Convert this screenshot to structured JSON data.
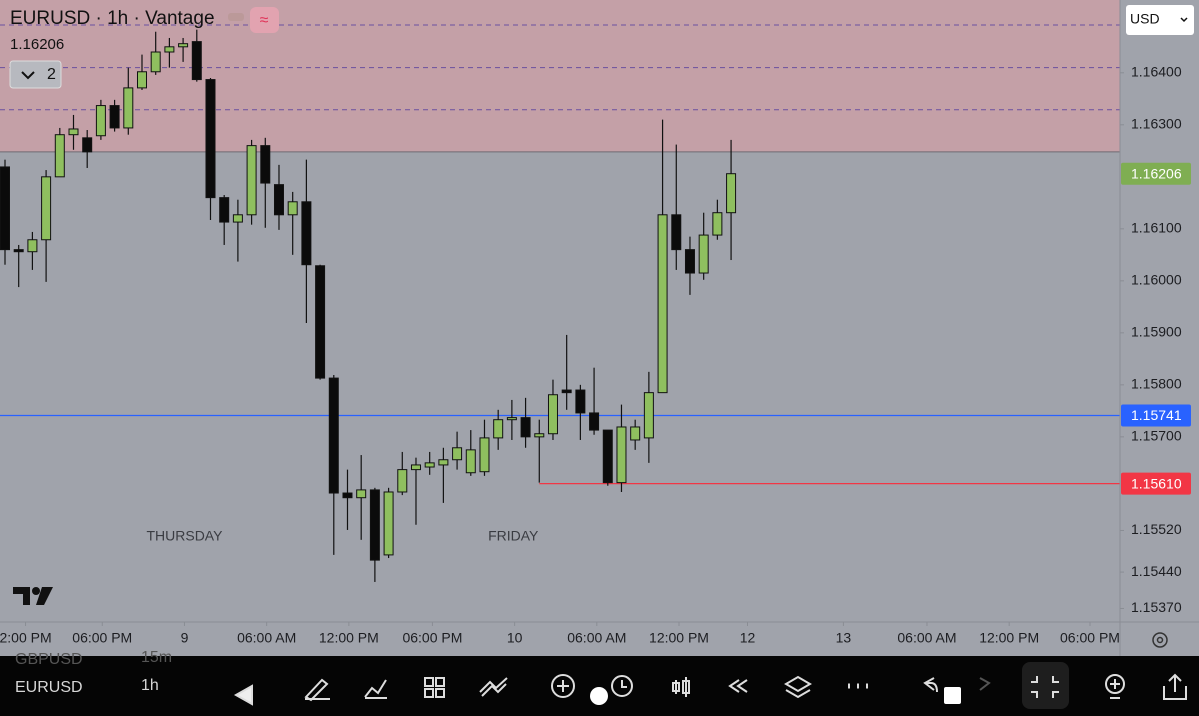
{
  "header": {
    "title": "EURUSD · 1h · Vantage",
    "price": "1.16206",
    "indicators_count": "2",
    "currency": "USD"
  },
  "chart_data": {
    "type": "candlestick",
    "up_color": "#8fbf5f",
    "down_color": "#0b0b0b",
    "open": [
      1.16219,
      1.1606,
      1.16056,
      1.16079,
      1.162,
      1.16281,
      1.16275,
      1.16279,
      1.16337,
      1.16294,
      1.16371,
      1.16402,
      1.1644,
      1.1645,
      1.1646,
      1.16387,
      1.1616,
      1.16113,
      1.16127,
      1.1626,
      1.16185,
      1.16127,
      1.16152,
      1.16029,
      1.15813,
      1.15592,
      1.15583,
      1.15598,
      1.15473,
      1.15594,
      1.15637,
      1.15642,
      1.15646,
      1.15656,
      1.15631,
      1.15633,
      1.15698,
      1.15733,
      1.15737,
      1.157,
      1.15706,
      1.1579,
      1.1579,
      1.15746,
      1.15713,
      1.15612,
      1.15694,
      1.15698,
      1.15785,
      1.16127,
      1.1606,
      1.16015,
      1.16088,
      1.16131
    ],
    "high": [
      1.16233,
      1.16069,
      1.16094,
      1.16213,
      1.16294,
      1.16319,
      1.1629,
      1.16348,
      1.16348,
      1.1641,
      1.16435,
      1.16479,
      1.16467,
      1.16467,
      1.16483,
      1.1639,
      1.16165,
      1.16156,
      1.16271,
      1.16275,
      1.16223,
      1.16171,
      1.16233,
      1.16031,
      1.15819,
      1.15637,
      1.15665,
      1.15602,
      1.15602,
      1.15671,
      1.1566,
      1.15671,
      1.15679,
      1.1571,
      1.15713,
      1.15733,
      1.15752,
      1.15771,
      1.15775,
      1.15733,
      1.1581,
      1.15896,
      1.158,
      1.15833,
      1.15713,
      1.15762,
      1.15733,
      1.15825,
      1.1631,
      1.16262,
      1.16085,
      1.16131,
      1.16156,
      1.16271
    ],
    "low": [
      1.16031,
      1.15988,
      1.16021,
      1.15998,
      1.162,
      1.16252,
      1.16217,
      1.16271,
      1.16287,
      1.16281,
      1.16367,
      1.16396,
      1.1641,
      1.16421,
      1.16383,
      1.16117,
      1.16069,
      1.16037,
      1.16108,
      1.16102,
      1.16098,
      1.1605,
      1.15919,
      1.1581,
      1.15473,
      1.15521,
      1.15502,
      1.15421,
      1.15467,
      1.15588,
      1.15531,
      1.15627,
      1.15573,
      1.15637,
      1.15625,
      1.15625,
      1.15675,
      1.15694,
      1.15679,
      1.15612,
      1.15694,
      1.15752,
      1.15694,
      1.15704,
      1.15606,
      1.15594,
      1.15675,
      1.1565,
      1.15785,
      1.16021,
      1.15973,
      1.16002,
      1.16079,
      1.1604
    ],
    "close": [
      1.1606,
      1.16056,
      1.16079,
      1.162,
      1.16281,
      1.16292,
      1.16248,
      1.16337,
      1.16294,
      1.16371,
      1.16402,
      1.1644,
      1.1645,
      1.16456,
      1.16387,
      1.1616,
      1.16113,
      1.16127,
      1.1626,
      1.16188,
      1.16127,
      1.16152,
      1.16031,
      1.15813,
      1.15592,
      1.15583,
      1.15598,
      1.15463,
      1.15594,
      1.15637,
      1.15646,
      1.1565,
      1.15656,
      1.15679,
      1.15675,
      1.15698,
      1.15733,
      1.15737,
      1.157,
      1.15706,
      1.15781,
      1.15785,
      1.15746,
      1.15713,
      1.15612,
      1.15719,
      1.15719,
      1.15785,
      1.16127,
      1.1606,
      1.16015,
      1.16088,
      1.16131,
      1.16206
    ],
    "xlim": [
      -0.365,
      81.39
    ],
    "ylim": [
      1.15344,
      1.1654
    ],
    "yticks": [
      {
        "value": 1.164,
        "label": "1.16400"
      },
      {
        "value": 1.163,
        "label": "1.16300"
      },
      {
        "value": 1.161,
        "label": "1.16100"
      },
      {
        "value": 1.16,
        "label": "1.16000"
      },
      {
        "value": 1.159,
        "label": "1.15900"
      },
      {
        "value": 1.158,
        "label": "1.15800"
      },
      {
        "value": 1.157,
        "label": "1.15700"
      },
      {
        "value": 1.1552,
        "label": "1.15520"
      },
      {
        "value": 1.1544,
        "label": "1.15440"
      },
      {
        "value": 1.1537,
        "label": "1.15370"
      }
    ],
    "xticks": [
      {
        "value": 1.5,
        "label": "2:00 PM"
      },
      {
        "value": 7.1,
        "label": "06:00 PM"
      },
      {
        "value": 13.1,
        "label": "9"
      },
      {
        "value": 19.1,
        "label": "06:00 AM"
      },
      {
        "value": 25.1,
        "label": "12:00 PM"
      },
      {
        "value": 31.2,
        "label": "06:00 PM"
      },
      {
        "value": 37.2,
        "label": "10"
      },
      {
        "value": 43.2,
        "label": "06:00 AM"
      },
      {
        "value": 49.2,
        "label": "12:00 PM"
      },
      {
        "value": 54.2,
        "label": "12"
      },
      {
        "value": 61.2,
        "label": "13"
      },
      {
        "value": 67.3,
        "label": "06:00 AM"
      },
      {
        "value": 73.3,
        "label": "12:00 PM"
      },
      {
        "value": 79.2,
        "label": "06:00 PM"
      }
    ],
    "day_labels": [
      {
        "value": 13.1,
        "label": "THURSDAY"
      },
      {
        "value": 37.1,
        "label": "FRIDAY"
      }
    ],
    "zone": {
      "top": 1.1654,
      "bottom": 1.16248,
      "color": "#c4a0a7"
    },
    "dashed_levels": [
      1.16492,
      1.1641,
      1.16329
    ],
    "price_lines": [
      {
        "value": 1.15741,
        "label": "1.15741",
        "color": "#2962ff",
        "start": -0.365
      },
      {
        "value": 1.1561,
        "label": "1.15610",
        "color": "#f23645",
        "start": 39
      }
    ],
    "last_price": {
      "value": 1.16206,
      "label": "1.16206",
      "color": "#7fae52"
    }
  },
  "watchlist": [
    {
      "symbol": "GBPUSD",
      "interval": "15m"
    },
    {
      "symbol": "EURUSD",
      "interval": "1h"
    }
  ]
}
